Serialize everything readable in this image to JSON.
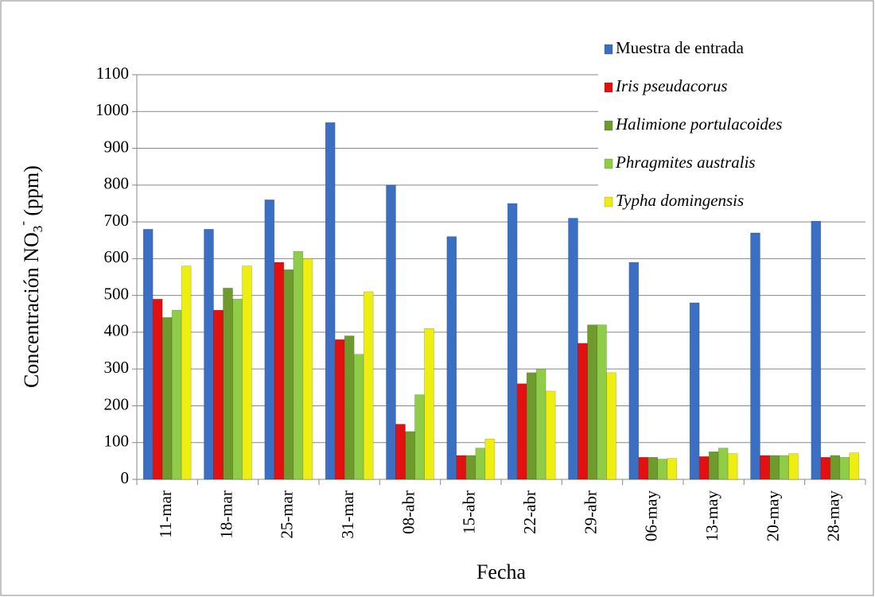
{
  "chart_data": {
    "type": "bar",
    "xlabel": "Fecha",
    "ylabel": [
      "Concentración NO",
      "3",
      "-",
      " (ppm)"
    ],
    "categories": [
      "11-mar",
      "18-mar",
      "25-mar",
      "31-mar",
      "08-abr",
      "15-abr",
      "22-abr",
      "29-abr",
      "06-may",
      "13-may",
      "20-may",
      "28-may"
    ],
    "series": [
      {
        "name": "Muestra de entrada",
        "color": "#3a6fc4",
        "values": [
          680,
          680,
          760,
          970,
          800,
          660,
          750,
          710,
          590,
          480,
          670,
          800
        ]
      },
      {
        "name": "Iris pseudacorus",
        "color": "#e41010",
        "values": [
          490,
          460,
          590,
          380,
          150,
          65,
          260,
          370,
          60,
          62,
          65,
          60
        ]
      },
      {
        "name": "Halimione portulacoides",
        "color": "#6f9a2c",
        "values": [
          440,
          520,
          570,
          390,
          130,
          65,
          290,
          420,
          60,
          75,
          65,
          65
        ]
      },
      {
        "name": "Phragmites australis",
        "color": "#8fcc48",
        "values": [
          460,
          490,
          620,
          340,
          230,
          85,
          300,
          420,
          55,
          85,
          65,
          60
        ]
      },
      {
        "name": "Typha domingensis",
        "color": "#eeee10",
        "values": [
          580,
          580,
          600,
          510,
          410,
          110,
          240,
          290,
          57,
          70,
          70,
          72
        ]
      }
    ],
    "ylim": [
      0,
      1100
    ],
    "yticks": [
      0,
      100,
      200,
      300,
      400,
      500,
      600,
      700,
      800,
      900,
      1000,
      1100
    ],
    "grid": true,
    "legend": "top-right"
  }
}
